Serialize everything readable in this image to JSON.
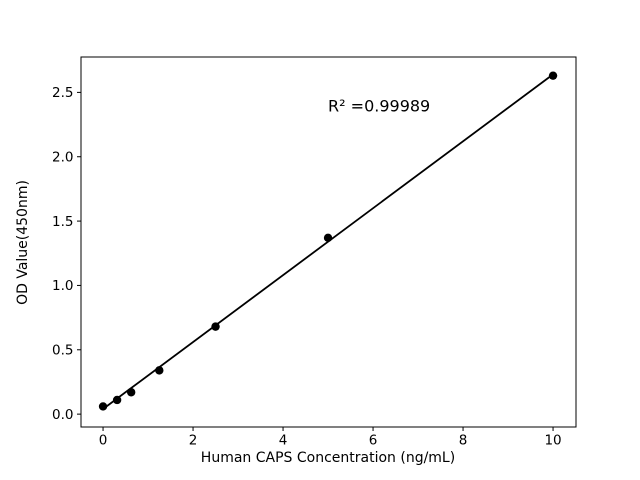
{
  "window": {
    "background": "#ffffff"
  },
  "chart_data": {
    "type": "scatter",
    "title": "",
    "xlabel": "Human CAPS Concentration (ng/mL)",
    "ylabel": "OD Value(450nm)",
    "annotation": {
      "text": "R² =0.99989",
      "x": 5.0,
      "y": 2.35
    },
    "points": {
      "x": [
        0,
        0.3125,
        0.625,
        1.25,
        2.5,
        5,
        10
      ],
      "y": [
        0.06,
        0.11,
        0.17,
        0.34,
        0.68,
        1.37,
        2.63
      ]
    },
    "fit_line": {
      "x": [
        0,
        10
      ],
      "y": [
        0.04,
        2.64
      ]
    },
    "x_ticks": {
      "values": [
        0,
        2,
        4,
        6,
        8,
        10
      ],
      "labels": [
        "0",
        "2",
        "4",
        "6",
        "8",
        "10"
      ]
    },
    "y_ticks": {
      "values": [
        0,
        0.5,
        1,
        1.5,
        2,
        2.5
      ],
      "labels": [
        "0.0",
        "0.5",
        "1.0",
        "1.5",
        "2.0",
        "2.5"
      ]
    },
    "xlim": [
      -0.49,
      10.51
    ],
    "ylim": [
      -0.1,
      2.775
    ],
    "grid": false,
    "legend": "none",
    "marker_color": "#000000",
    "line_color": "#000000",
    "axis_color": "#000000",
    "plot_bg": "#ffffff"
  }
}
